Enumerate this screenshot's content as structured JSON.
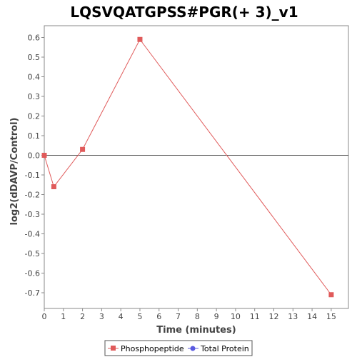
{
  "chart_data": {
    "type": "line",
    "title": "LQSVQATGPSS#PGR(+ 3)_v1",
    "xlabel": "Time (minutes)",
    "ylabel": "log2(dDAVP/Control)",
    "xlim": [
      0,
      15.9
    ],
    "ylim": [
      -0.78,
      0.66
    ],
    "xticks": [
      0,
      1,
      2,
      3,
      4,
      5,
      6,
      7,
      8,
      9,
      10,
      11,
      12,
      13,
      14,
      15
    ],
    "yticks": [
      0.6,
      0.5,
      0.4,
      0.3,
      0.2,
      0.1,
      0.0,
      -0.1,
      -0.2,
      -0.3,
      -0.4,
      -0.5,
      -0.6,
      -0.7
    ],
    "ytick_labels": [
      "0.6",
      "0.5",
      "0.4",
      "0.3",
      "0.2",
      "0.1",
      "0.0",
      "-0.1",
      "-0.2",
      "-0.3",
      "-0.4",
      "-0.5",
      "-0.6",
      "-0.7"
    ],
    "zero_line": true,
    "grid": false,
    "legend_position": "bottom",
    "series": [
      {
        "name": "Phosphopeptide",
        "color": "#e05a5a",
        "marker": "square",
        "x": [
          0,
          0.5,
          2,
          5,
          15
        ],
        "y": [
          0.0,
          -0.16,
          0.03,
          0.59,
          -0.71
        ]
      },
      {
        "name": "Total Protein",
        "color": "#5a5ae0",
        "marker": "circle",
        "x": [],
        "y": []
      }
    ]
  }
}
